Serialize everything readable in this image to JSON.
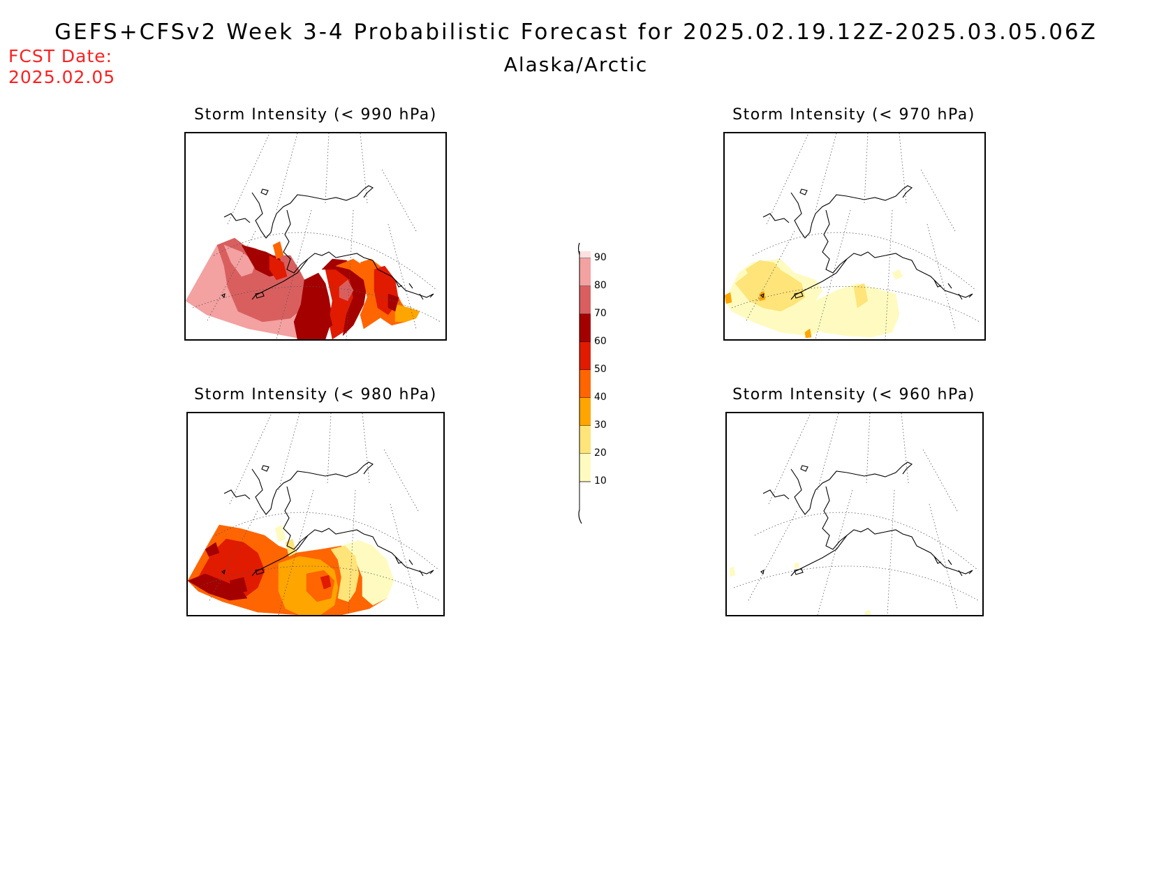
{
  "header": {
    "title": "GEFS+CFSv2 Week 3-4 Probabilistic Forecast for 2025.02.19.12Z-2025.03.05.06Z",
    "subtitle": "Alaska/Arctic",
    "fcst_label": "FCST Date:",
    "fcst_date": "2025.02.05"
  },
  "panels": [
    {
      "title": "Storm Intensity (< 990 hPa)",
      "threshold": "990"
    },
    {
      "title": "Storm Intensity (< 970 hPa)",
      "threshold": "970"
    },
    {
      "title": "Storm Intensity (< 980 hPa)",
      "threshold": "980"
    },
    {
      "title": "Storm Intensity (< 960 hPa)",
      "threshold": "960"
    }
  ],
  "colorbar": {
    "levels": [
      "10",
      "20",
      "30",
      "40",
      "50",
      "60",
      "70",
      "80",
      "90"
    ],
    "colors": {
      "lt10": "#ffffff",
      "c10_20": "#fffbc0",
      "c20_30": "#ffe47a",
      "c30_40": "#ffa500",
      "c40_50": "#ff6500",
      "c50_60": "#e01b00",
      "c60_70": "#a50000",
      "c70_80": "#d95f5f",
      "c80_90": "#f3a1a1",
      "gt90": "#fde0e0"
    }
  }
}
